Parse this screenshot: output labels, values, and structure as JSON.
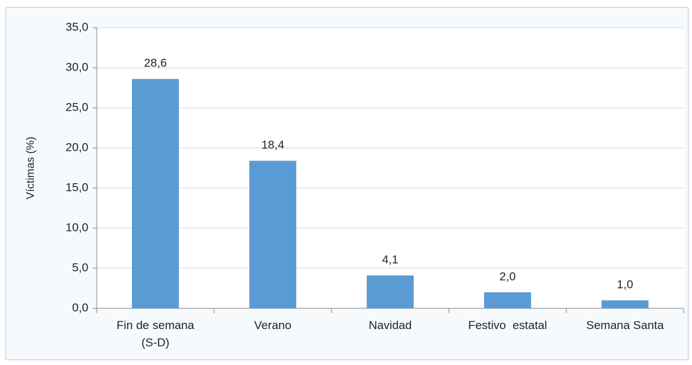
{
  "chart_data": {
    "type": "bar",
    "ylabel": "Víctimas (%)",
    "categories": [
      "Fin de semana\n(S-D)",
      "Verano",
      "Navidad",
      "Festivo  estatal",
      "Semana Santa"
    ],
    "values": [
      28.6,
      18.4,
      4.1,
      2.0,
      1.0
    ],
    "value_labels": [
      "28,6",
      "18,4",
      "4,1",
      "2,0",
      "1,0"
    ],
    "color": "#5b9bd5",
    "ylim": [
      0,
      35
    ],
    "yticks": [
      {
        "value": 0,
        "label": "0,0"
      },
      {
        "value": 5,
        "label": "5,0"
      },
      {
        "value": 10,
        "label": "10,0"
      },
      {
        "value": 15,
        "label": "15,0"
      },
      {
        "value": 20,
        "label": "20,0"
      },
      {
        "value": 25,
        "label": "25,0"
      },
      {
        "value": 30,
        "label": "30,0"
      },
      {
        "value": 35,
        "label": "35,0"
      }
    ],
    "grid": true
  }
}
